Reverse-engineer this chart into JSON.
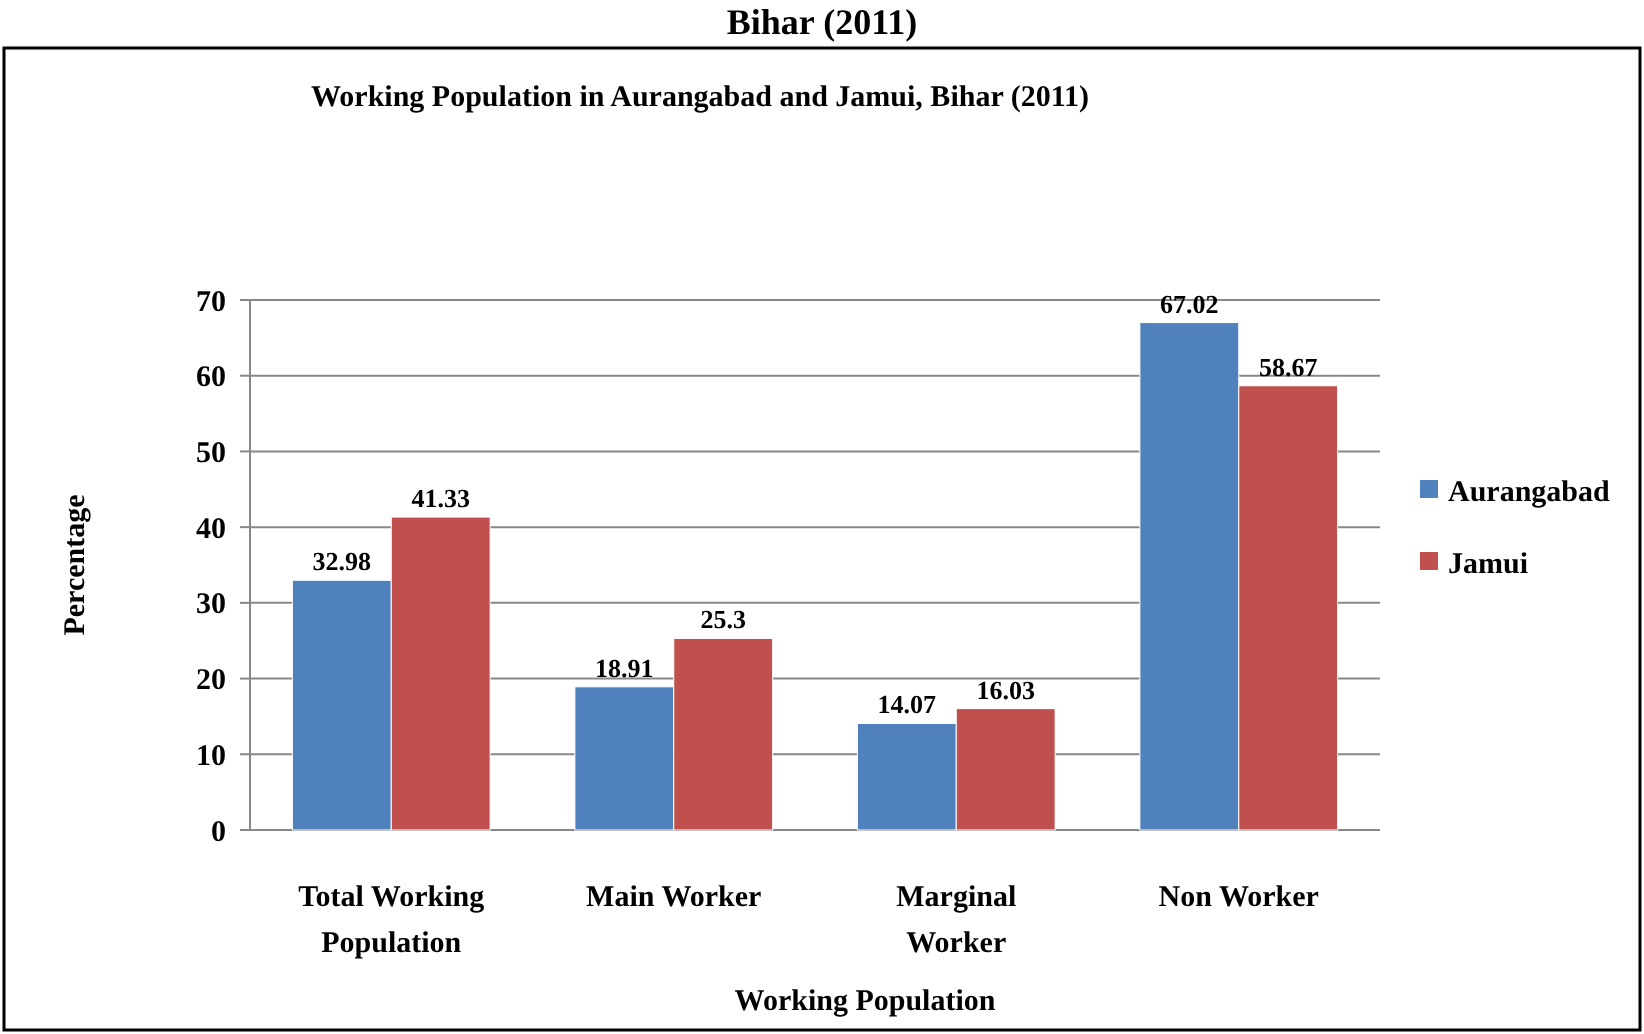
{
  "chart_data": {
    "type": "bar",
    "title": "Working Population in Aurangabad and Jamui, Bihar (2011)",
    "xlabel": "Working Population",
    "ylabel": "Percentage",
    "annotations": [
      "Bihar (2011)"
    ],
    "categories": [
      "Total Working Population",
      "Main Worker",
      "Marginal Worker",
      "Non Worker"
    ],
    "series": [
      {
        "name": "Aurangabad",
        "color": "#4f81bd",
        "values": [
          32.98,
          18.91,
          14.07,
          67.02
        ]
      },
      {
        "name": "Jamui",
        "color": "#c0504d",
        "values": [
          41.33,
          25.3,
          16.03,
          58.67
        ]
      }
    ],
    "ylim": [
      0,
      70
    ],
    "yticks": [
      0,
      10,
      20,
      30,
      40,
      50,
      60,
      70
    ],
    "grid": "y",
    "legend": "right",
    "data_labels": true
  }
}
